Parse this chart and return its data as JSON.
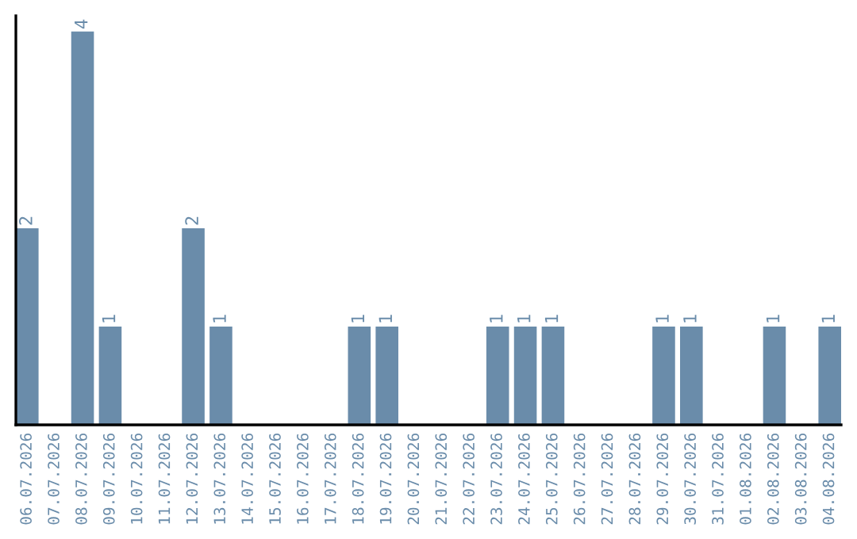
{
  "chart_data": {
    "type": "bar",
    "categories": [
      "06.07.2026",
      "07.07.2026",
      "08.07.2026",
      "09.07.2026",
      "10.07.2026",
      "11.07.2026",
      "12.07.2026",
      "13.07.2026",
      "14.07.2026",
      "15.07.2026",
      "16.07.2026",
      "17.07.2026",
      "18.07.2026",
      "19.07.2026",
      "20.07.2026",
      "21.07.2026",
      "22.07.2026",
      "23.07.2026",
      "24.07.2026",
      "25.07.2026",
      "26.07.2026",
      "27.07.2026",
      "28.07.2026",
      "29.07.2026",
      "30.07.2026",
      "31.07.2026",
      "01.08.2026",
      "02.08.2026",
      "03.08.2026",
      "04.08.2026"
    ],
    "values": [
      2,
      0,
      4,
      1,
      0,
      0,
      2,
      1,
      0,
      0,
      0,
      0,
      1,
      1,
      0,
      0,
      0,
      1,
      1,
      1,
      0,
      0,
      0,
      1,
      1,
      0,
      0,
      1,
      0,
      1
    ],
    "value_labels": [
      "2",
      null,
      "4",
      "1",
      null,
      null,
      "2",
      "1",
      null,
      null,
      null,
      null,
      "1",
      "1",
      null,
      null,
      null,
      "1",
      "1",
      "1",
      null,
      null,
      null,
      "1",
      "1",
      null,
      null,
      "1",
      null,
      "1"
    ],
    "color": "#6a8caa",
    "tick_labels": "x",
    "grid": false,
    "legend": false
  }
}
